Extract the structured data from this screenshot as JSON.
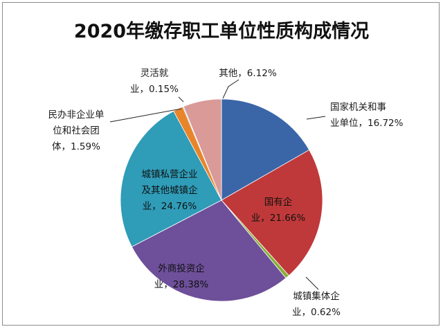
{
  "chart_data": {
    "type": "pie",
    "title": "2020年缴存职工单位性质构成情况",
    "unit": "%",
    "slices": [
      {
        "lines": [
          "国家机关和事",
          "业单位，16.72%"
        ],
        "value": 16.72,
        "color": "#3a66a8",
        "inside": false
      },
      {
        "lines": [
          "国有企",
          "业，21.66%"
        ],
        "value": 21.66,
        "color": "#c0393a",
        "inside": true
      },
      {
        "lines": [
          "城镇集体企",
          "业，0.62%"
        ],
        "value": 0.62,
        "color": "#8aae3a",
        "inside": false
      },
      {
        "lines": [
          "外商投资企",
          "业，28.38%"
        ],
        "value": 28.38,
        "color": "#6e4f9a",
        "inside": true
      },
      {
        "lines": [
          "城镇私营企业",
          "及其他城镇企",
          "业，24.76%"
        ],
        "value": 24.76,
        "color": "#2f9cb8",
        "inside": true
      },
      {
        "lines": [
          "民办非企业单",
          "位和社会团",
          "体，1.59%"
        ],
        "value": 1.59,
        "color": "#e8852a",
        "inside": false
      },
      {
        "lines": [
          "灵活就",
          "业，0.15%"
        ],
        "value": 0.15,
        "color": "#8fb2df",
        "inside": false
      },
      {
        "lines": [
          "其他，6.12%"
        ],
        "value": 6.12,
        "color": "#d99a98",
        "inside": false
      }
    ]
  }
}
